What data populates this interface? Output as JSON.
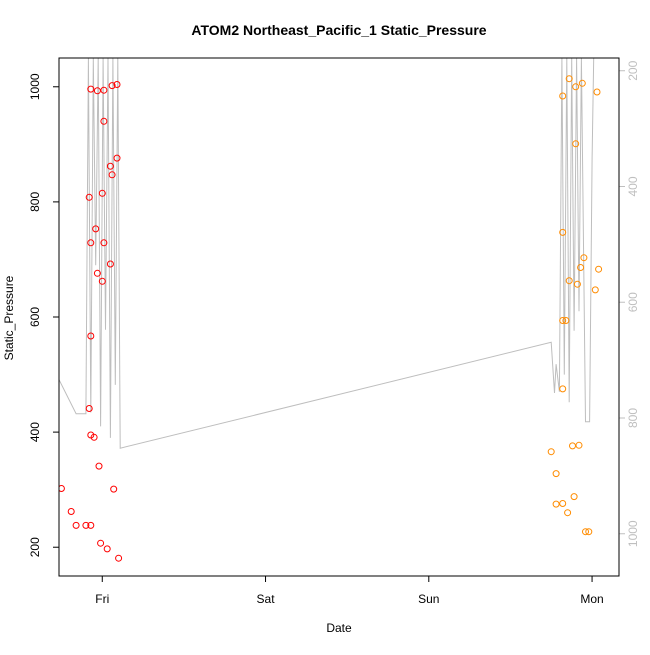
{
  "chart_data": {
    "type": "scatter",
    "title": "ATOM2 Northeast_Pacific_1 Static_Pressure",
    "xlabel": "Date",
    "ylabel": "Static_Pressure",
    "x_axis": {
      "min": -0.265,
      "max": 3.165,
      "ticks": [
        {
          "value": 0,
          "label": "Fri"
        },
        {
          "value": 1,
          "label": "Sat"
        },
        {
          "value": 2,
          "label": "Sun"
        },
        {
          "value": 3,
          "label": "Mon"
        }
      ]
    },
    "y_left": {
      "min": 150,
      "max": 1050,
      "ticks": [
        200,
        400,
        600,
        800,
        1000
      ],
      "color": "#000000"
    },
    "y_right": {
      "min": 1073,
      "max": 178,
      "ticks": [
        200,
        400,
        600,
        800,
        1000
      ],
      "color": "#bfbfbf"
    },
    "series": [
      {
        "color": "#ff0000",
        "axis": "left",
        "marker": "circle-open",
        "points": [
          [
            -0.25,
            302
          ],
          [
            -0.19,
            262
          ],
          [
            -0.16,
            238
          ],
          [
            -0.1,
            238
          ],
          [
            -0.07,
            238
          ],
          [
            -0.08,
            808
          ],
          [
            -0.08,
            441
          ],
          [
            -0.07,
            996
          ],
          [
            -0.07,
            729
          ],
          [
            -0.07,
            567
          ],
          [
            -0.07,
            395
          ],
          [
            -0.05,
            391
          ],
          [
            -0.04,
            753
          ],
          [
            -0.03,
            993
          ],
          [
            -0.03,
            676
          ],
          [
            -0.02,
            341
          ],
          [
            -0.01,
            207
          ],
          [
            0.0,
            815
          ],
          [
            0.0,
            662
          ],
          [
            0.01,
            994
          ],
          [
            0.01,
            940
          ],
          [
            0.01,
            729
          ],
          [
            0.03,
            197
          ],
          [
            0.05,
            692
          ],
          [
            0.05,
            862
          ],
          [
            0.06,
            847
          ],
          [
            0.06,
            1002
          ],
          [
            0.07,
            301
          ],
          [
            0.09,
            1004
          ],
          [
            0.09,
            876
          ],
          [
            0.1,
            181
          ]
        ]
      },
      {
        "color": "#ff8c00",
        "axis": "left",
        "marker": "circle-open",
        "points": [
          [
            2.75,
            366
          ],
          [
            2.78,
            328
          ],
          [
            2.78,
            275
          ],
          [
            2.82,
            276
          ],
          [
            2.82,
            475
          ],
          [
            2.82,
            747
          ],
          [
            2.82,
            984
          ],
          [
            2.82,
            594
          ],
          [
            2.84,
            594
          ],
          [
            2.85,
            260
          ],
          [
            2.86,
            663
          ],
          [
            2.86,
            1014
          ],
          [
            2.88,
            376
          ],
          [
            2.89,
            288
          ],
          [
            2.9,
            901
          ],
          [
            2.9,
            1000
          ],
          [
            2.91,
            657
          ],
          [
            2.92,
            377
          ],
          [
            2.93,
            686
          ],
          [
            2.94,
            1006
          ],
          [
            2.95,
            703
          ],
          [
            2.96,
            227
          ],
          [
            2.98,
            227
          ],
          [
            3.02,
            647
          ],
          [
            3.03,
            991
          ],
          [
            3.04,
            683
          ]
        ]
      }
    ],
    "line": {
      "color": "#bebebe",
      "axis": "left",
      "points": [
        [
          -0.27,
          494
        ],
        [
          -0.16,
          432
        ],
        [
          -0.1,
          432
        ],
        [
          -0.085,
          1050
        ],
        [
          -0.07,
          434
        ],
        [
          -0.055,
          1050
        ],
        [
          -0.04,
          690
        ],
        [
          -0.025,
          1050
        ],
        [
          -0.01,
          410
        ],
        [
          0.005,
          1050
        ],
        [
          0.02,
          578
        ],
        [
          0.035,
          1050
        ],
        [
          0.05,
          390
        ],
        [
          0.065,
          1050
        ],
        [
          0.08,
          482
        ],
        [
          0.095,
          1050
        ],
        [
          0.11,
          372
        ],
        [
          2.75,
          556
        ],
        [
          2.77,
          468
        ],
        [
          2.78,
          518
        ],
        [
          2.8,
          470
        ],
        [
          2.815,
          1050
        ],
        [
          2.83,
          500
        ],
        [
          2.845,
          1050
        ],
        [
          2.86,
          452
        ],
        [
          2.875,
          1050
        ],
        [
          2.89,
          576
        ],
        [
          2.905,
          1050
        ],
        [
          2.92,
          610
        ],
        [
          2.935,
          1050
        ],
        [
          2.96,
          418
        ],
        [
          2.985,
          418
        ],
        [
          3.0,
          876
        ],
        [
          3.01,
          1050
        ]
      ]
    },
    "grid": false,
    "legend": "none"
  }
}
